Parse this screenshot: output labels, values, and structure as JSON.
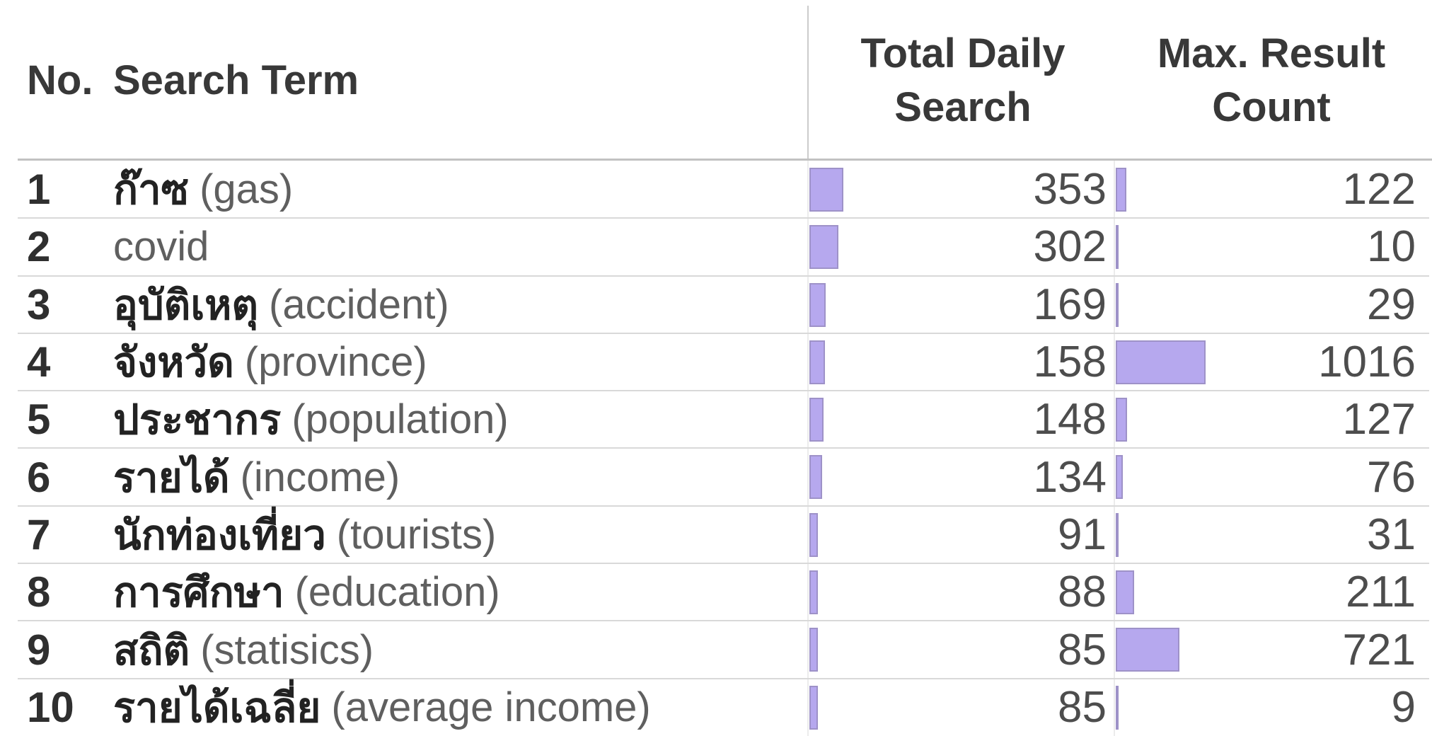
{
  "header": {
    "no": "No.",
    "term": "Search Term",
    "daily": "Total Daily Search",
    "max": "Max. Result Count"
  },
  "rows": [
    {
      "no": "1",
      "term": "ก๊าซ",
      "note": "(gas)",
      "daily": 353,
      "max": 122
    },
    {
      "no": "2",
      "term": "",
      "note": "covid",
      "daily": 302,
      "max": 10
    },
    {
      "no": "3",
      "term": "อุบัติเหตุ",
      "note": "(accident)",
      "daily": 169,
      "max": 29
    },
    {
      "no": "4",
      "term": "จังหวัด",
      "note": "(province)",
      "daily": 158,
      "max": 1016
    },
    {
      "no": "5",
      "term": "ประชากร",
      "note": "(population)",
      "daily": 148,
      "max": 127
    },
    {
      "no": "6",
      "term": "รายได้",
      "note": "(income)",
      "daily": 134,
      "max": 76
    },
    {
      "no": "7",
      "term": "นักท่องเที่ยว",
      "note": "(tourists)",
      "daily": 91,
      "max": 31
    },
    {
      "no": "8",
      "term": "การศึกษา",
      "note": "(education)",
      "daily": 88,
      "max": 211
    },
    {
      "no": "9",
      "term": "สถิติ",
      "note": "(statisics)",
      "daily": 85,
      "max": 721
    },
    {
      "no": "10",
      "term": "รายได้เฉลี่ย",
      "note": "(average income)",
      "daily": 85,
      "max": 9
    }
  ],
  "colors": {
    "bar_fill": "#b6a8ee",
    "bar_border": "#9e92c8",
    "background": "#ffffff"
  },
  "chart_data": {
    "type": "table",
    "title": "",
    "columns": [
      "No.",
      "Search Term",
      "Total Daily Search",
      "Max. Result Count"
    ],
    "categories": [
      "ก๊าซ (gas)",
      "covid",
      "อุบัติเหตุ (accident)",
      "จังหวัด (province)",
      "ประชากร (population)",
      "รายได้ (income)",
      "นักท่องเที่ยว (tourists)",
      "การศึกษา (education)",
      "สถิติ (statisics)",
      "รายได้เฉลี่ย (average income)"
    ],
    "series": [
      {
        "name": "Total Daily Search",
        "values": [
          353,
          302,
          169,
          158,
          148,
          134,
          91,
          88,
          85,
          85
        ]
      },
      {
        "name": "Max. Result Count",
        "values": [
          122,
          10,
          29,
          1016,
          127,
          76,
          31,
          211,
          721,
          9
        ]
      }
    ],
    "layout_hints": {
      "inline_bars": true,
      "bar_color": "#b6a8ee",
      "bars_scaled_per_column_max": true,
      "numbers_right_aligned": true,
      "grid": "horizontal row separators only"
    }
  }
}
